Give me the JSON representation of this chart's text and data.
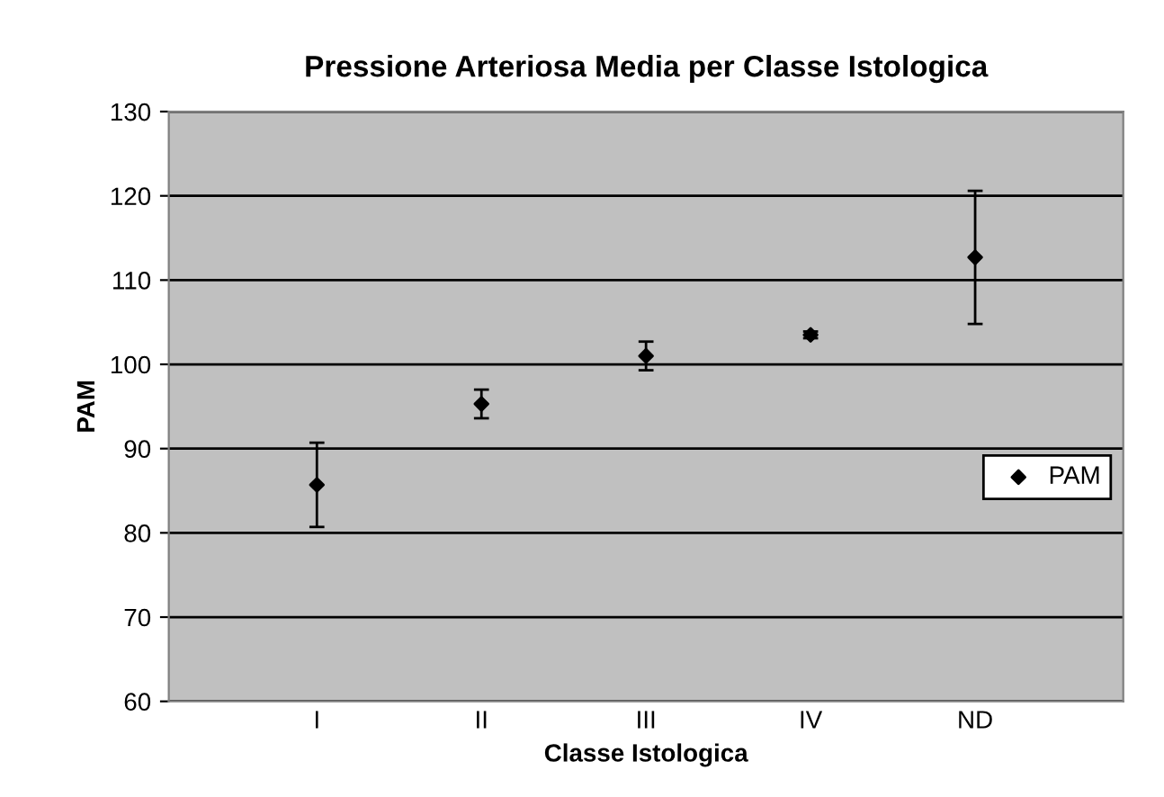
{
  "chart_data": {
    "type": "scatter",
    "title": "Pressione Arteriosa Media per Classe Istologica",
    "xlabel": "Classe Istologica",
    "ylabel": "PAM",
    "categories": [
      "I",
      "II",
      "III",
      "IV",
      "ND"
    ],
    "series": [
      {
        "name": "PAM",
        "color": "#000000",
        "values": [
          85.7,
          95.3,
          101,
          103.5,
          112.7
        ],
        "errors": [
          5,
          1.7,
          1.7,
          0.4,
          7.9
        ]
      }
    ],
    "ylim": [
      60,
      130
    ],
    "yticks": [
      60,
      70,
      80,
      90,
      100,
      110,
      120,
      130
    ],
    "grid": "y",
    "legend": "right",
    "marker": "diamond"
  }
}
